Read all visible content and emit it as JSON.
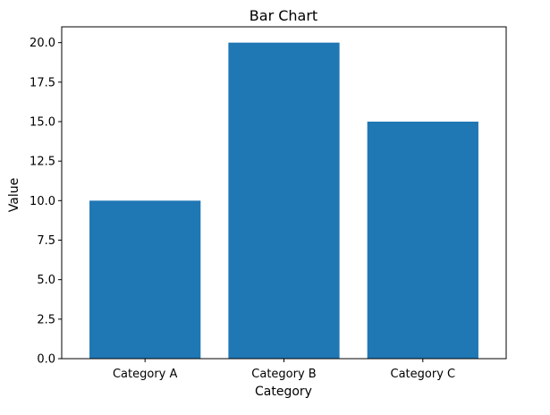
{
  "chart_data": {
    "type": "bar",
    "title": "Bar Chart",
    "xlabel": "Category",
    "ylabel": "Value",
    "categories": [
      "Category A",
      "Category B",
      "Category C"
    ],
    "values": [
      10,
      20,
      15
    ],
    "ylim": [
      0,
      21
    ],
    "yticks": [
      "0.0",
      "2.5",
      "5.0",
      "7.5",
      "10.0",
      "12.5",
      "15.0",
      "17.5",
      "20.0"
    ],
    "grid": false,
    "bar_color": "#1f77b4"
  }
}
